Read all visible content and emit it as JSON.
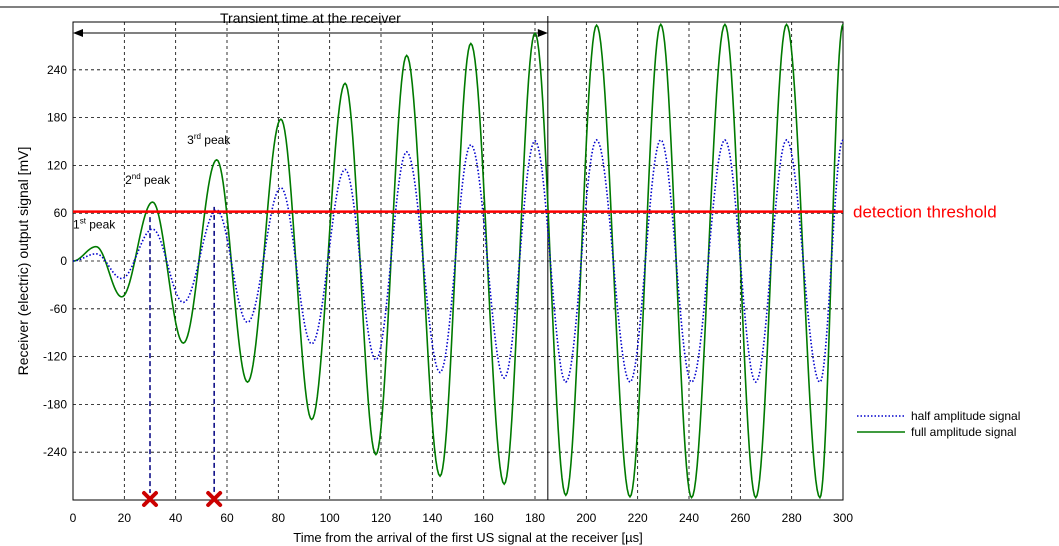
{
  "chart_data": {
    "type": "line",
    "xlabel": "Time from the arrival of the first US signal at the receiver [",
    "xlabel_unit": "µs",
    "xlabel_end": "]",
    "ylabel": "Receiver (electric) output signal [mV]",
    "xlim": [
      0,
      300
    ],
    "ylim": [
      -300,
      300
    ],
    "grid": true,
    "x_ticks": [
      "0",
      "20",
      "40",
      "60",
      "80",
      "100",
      "120",
      "140",
      "160",
      "180",
      "200",
      "220",
      "240",
      "260",
      "280",
      "300"
    ],
    "y_ticks": [
      "240",
      "180",
      "120",
      "60",
      "0",
      "-60",
      "-120",
      "-180",
      "-240"
    ],
    "series": [
      {
        "name": "full amplitude signal",
        "color": "#007a00",
        "style": "solid",
        "points": [
          [
            0,
            0
          ],
          [
            9,
            18
          ],
          [
            19,
            -45
          ],
          [
            31,
            74
          ],
          [
            43,
            -103
          ],
          [
            56,
            127
          ],
          [
            68,
            -152
          ],
          [
            81,
            178
          ],
          [
            93,
            -199
          ],
          [
            106,
            223
          ],
          [
            118,
            -243
          ],
          [
            130,
            258
          ],
          [
            143,
            -270
          ],
          [
            155,
            273
          ],
          [
            168,
            -280
          ],
          [
            180,
            286
          ],
          [
            192,
            -294
          ],
          [
            204,
            296
          ],
          [
            217,
            -296
          ],
          [
            229,
            297
          ],
          [
            241,
            -297
          ],
          [
            254,
            297
          ],
          [
            266,
            -297
          ],
          [
            278,
            297
          ],
          [
            291,
            -297
          ],
          [
            300,
            297
          ]
        ]
      },
      {
        "name": "half amplitude signal",
        "color": "#0000cc",
        "style": "dotted",
        "points": [
          [
            0,
            0
          ],
          [
            9,
            9
          ],
          [
            19,
            -22
          ],
          [
            31,
            40
          ],
          [
            43,
            -52
          ],
          [
            56,
            64
          ],
          [
            68,
            -77
          ],
          [
            81,
            92
          ],
          [
            93,
            -104
          ],
          [
            106,
            115
          ],
          [
            118,
            -124
          ],
          [
            130,
            137
          ],
          [
            143,
            -140
          ],
          [
            155,
            146
          ],
          [
            168,
            -147
          ],
          [
            180,
            151
          ],
          [
            192,
            -152
          ],
          [
            204,
            152
          ],
          [
            217,
            -152
          ],
          [
            229,
            152
          ],
          [
            241,
            -152
          ],
          [
            254,
            152
          ],
          [
            266,
            -152
          ],
          [
            278,
            152
          ],
          [
            291,
            -152
          ],
          [
            300,
            152
          ]
        ]
      }
    ],
    "threshold": {
      "value": 62,
      "label": "detection threshold",
      "color": "#ff0000"
    },
    "transient": {
      "x_start": 0,
      "x_end": 185,
      "label": "Transient time at the receiver"
    },
    "peak_labels": [
      {
        "x": 0,
        "y": 18,
        "num": "1",
        "sup": "st",
        "text": " peak"
      },
      {
        "x": 31,
        "y": 74,
        "num": "2",
        "sup": "nd",
        "text": " peak"
      },
      {
        "x": 56,
        "y": 127,
        "num": "3",
        "sup": "rd",
        "text": " peak"
      }
    ],
    "markers": [
      {
        "x": 30,
        "y": 55,
        "color": "#cc0000"
      },
      {
        "x": 55,
        "y": 68,
        "color": "#cc0000"
      }
    ],
    "legend_position": "bottom-right"
  }
}
